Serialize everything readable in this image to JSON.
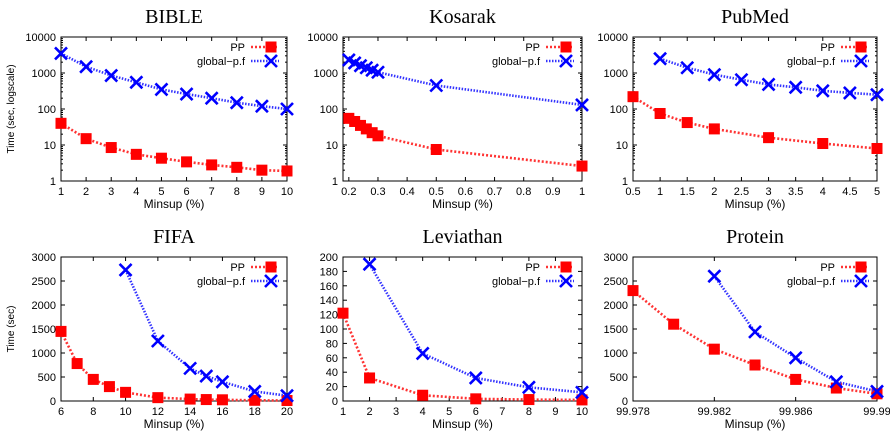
{
  "colors": {
    "pp": "#ff0000",
    "pp_line": "#ff3333",
    "gpf": "#0000ff",
    "gpf_line": "#3333ff"
  },
  "chart_data": [
    {
      "type": "line",
      "title": "BIBLE",
      "xlabel": "Minsup (%)",
      "ylabel": "Time (sec, logscale)",
      "yscale": "log",
      "xlim": [
        1,
        10
      ],
      "ylim": [
        1,
        10000
      ],
      "xticks": [
        "1",
        "2",
        "3",
        "4",
        "5",
        "6",
        "7",
        "8",
        "9",
        "10"
      ],
      "yticks": [
        "1",
        "10",
        "100",
        "1000",
        "10000"
      ],
      "legend": "top-right",
      "series": [
        {
          "name": "PP",
          "x": [
            1,
            2,
            3,
            4,
            5,
            6,
            7,
            8,
            9,
            10
          ],
          "y": [
            40,
            15,
            8.5,
            5.5,
            4.3,
            3.4,
            2.8,
            2.4,
            2.0,
            1.9
          ]
        },
        {
          "name": "global−p.f",
          "x": [
            1,
            2,
            3,
            4,
            5,
            6,
            7,
            8,
            9,
            10
          ],
          "y": [
            3500,
            1500,
            850,
            550,
            350,
            260,
            200,
            150,
            120,
            100
          ]
        }
      ]
    },
    {
      "type": "line",
      "title": "Kosarak",
      "xlabel": "Minsup (%)",
      "ylabel": "",
      "yscale": "log",
      "xlim": [
        0.18,
        1
      ],
      "ylim": [
        1,
        10000
      ],
      "xticks": [
        "0.2",
        "0.3",
        "0.4",
        "0.5",
        "0.6",
        "0.7",
        "0.8",
        "0.9",
        "1"
      ],
      "yticks": [
        "1",
        "10",
        "100",
        "1000",
        "10000"
      ],
      "legend": "top-right",
      "series": [
        {
          "name": "PP",
          "x": [
            0.2,
            0.22,
            0.24,
            0.26,
            0.28,
            0.3,
            0.5,
            1
          ],
          "y": [
            55,
            45,
            35,
            28,
            22,
            18,
            7.5,
            2.6
          ]
        },
        {
          "name": "global−p.f",
          "x": [
            0.2,
            0.22,
            0.24,
            0.26,
            0.28,
            0.3,
            0.5,
            1
          ],
          "y": [
            2300,
            1900,
            1600,
            1400,
            1200,
            1050,
            450,
            130
          ]
        }
      ]
    },
    {
      "type": "line",
      "title": "PubMed",
      "xlabel": "Minsup (%)",
      "ylabel": "",
      "yscale": "log",
      "xlim": [
        0.5,
        5
      ],
      "ylim": [
        1,
        10000
      ],
      "xticks": [
        "0.5",
        "1",
        "1.5",
        "2",
        "2.5",
        "3",
        "3.5",
        "4",
        "4.5",
        "5"
      ],
      "yticks": [
        "1",
        "10",
        "100",
        "1000",
        "10000"
      ],
      "legend": "top-right",
      "series": [
        {
          "name": "PP",
          "x": [
            0.5,
            1,
            1.5,
            2,
            3,
            4,
            5
          ],
          "y": [
            220,
            75,
            42,
            28,
            16,
            11,
            8
          ]
        },
        {
          "name": "global−p.f",
          "x": [
            1,
            1.5,
            2,
            2.5,
            3,
            3.5,
            4,
            4.5,
            5
          ],
          "y": [
            2500,
            1400,
            900,
            650,
            480,
            400,
            320,
            280,
            250
          ]
        }
      ]
    },
    {
      "type": "line",
      "title": "FIFA",
      "xlabel": "Minsup (%)",
      "ylabel": "Time (sec)",
      "yscale": "linear",
      "xlim": [
        6,
        20
      ],
      "ylim": [
        0,
        3000
      ],
      "xticks": [
        "6",
        "8",
        "10",
        "12",
        "14",
        "16",
        "18",
        "20"
      ],
      "yticks": [
        "0",
        "500",
        "1000",
        "1500",
        "2000",
        "2500",
        "3000"
      ],
      "legend": "top-right",
      "series": [
        {
          "name": "PP",
          "x": [
            6,
            7,
            8,
            9,
            10,
            12,
            14,
            15,
            16,
            18,
            20
          ],
          "y": [
            1450,
            780,
            450,
            300,
            180,
            70,
            40,
            30,
            25,
            15,
            10
          ]
        },
        {
          "name": "global−p.f",
          "x": [
            10,
            12,
            14,
            15,
            16,
            18,
            20
          ],
          "y": [
            2730,
            1250,
            680,
            520,
            400,
            200,
            110
          ]
        }
      ]
    },
    {
      "type": "line",
      "title": "Leviathan",
      "xlabel": "Minsup (%)",
      "ylabel": "",
      "yscale": "linear",
      "xlim": [
        1,
        10
      ],
      "ylim": [
        0,
        200
      ],
      "xticks": [
        "1",
        "2",
        "3",
        "4",
        "5",
        "6",
        "7",
        "8",
        "9",
        "10"
      ],
      "yticks": [
        "0",
        "20",
        "40",
        "60",
        "80",
        "100",
        "120",
        "140",
        "160",
        "180",
        "200"
      ],
      "legend": "top-right",
      "series": [
        {
          "name": "PP",
          "x": [
            1,
            2,
            4,
            6,
            8,
            10
          ],
          "y": [
            122,
            32,
            8,
            3,
            2,
            1.5
          ]
        },
        {
          "name": "global−p.f",
          "x": [
            2,
            4,
            6,
            8,
            10
          ],
          "y": [
            190,
            66,
            32,
            19,
            12
          ]
        }
      ]
    },
    {
      "type": "line",
      "title": "Protein",
      "xlabel": "Minsup (%)",
      "ylabel": "",
      "yscale": "linear",
      "xlim": [
        99.978,
        99.99
      ],
      "ylim": [
        0,
        3000
      ],
      "xticks": [
        "99.978",
        "99.982",
        "99.986",
        "99.99"
      ],
      "xtick_values": [
        99.978,
        99.982,
        99.986,
        99.99
      ],
      "yticks": [
        "0",
        "500",
        "1000",
        "1500",
        "2000",
        "2500",
        "3000"
      ],
      "legend": "top-right",
      "series": [
        {
          "name": "PP",
          "x": [
            99.978,
            99.98,
            99.982,
            99.984,
            99.986,
            99.988,
            99.99
          ],
          "y": [
            2300,
            1600,
            1080,
            750,
            450,
            270,
            150
          ]
        },
        {
          "name": "global−p.f",
          "x": [
            99.982,
            99.984,
            99.986,
            99.988,
            99.99
          ],
          "y": [
            2600,
            1440,
            900,
            400,
            200
          ]
        }
      ]
    }
  ]
}
